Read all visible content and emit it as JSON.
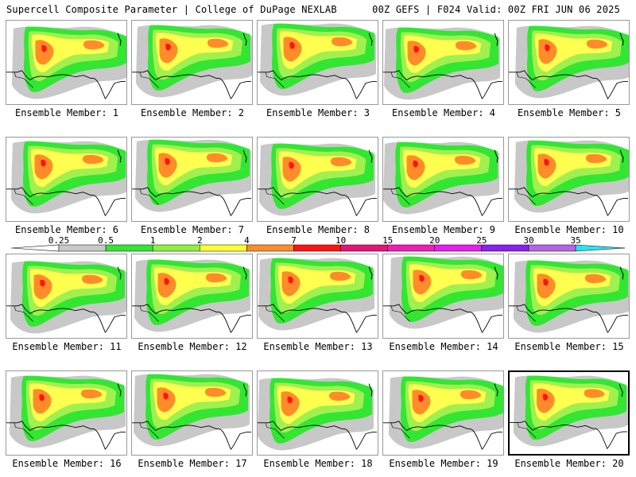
{
  "header": {
    "left": "Supercell Composite Parameter | College of DuPage NEXLAB",
    "right": "00Z GEFS | F024 Valid: 00Z FRI JUN 06 2025"
  },
  "caption_prefix": "Ensemble Member: ",
  "members": [
    1,
    2,
    3,
    4,
    5,
    6,
    7,
    8,
    9,
    10,
    11,
    12,
    13,
    14,
    15,
    16,
    17,
    18,
    19,
    20
  ],
  "selected_member": 20,
  "colorbar": {
    "labels": [
      "0.25",
      "0.5",
      "1",
      "2",
      "4",
      "7",
      "10",
      "15",
      "20",
      "25",
      "30",
      "35"
    ],
    "colors": [
      "#c8c8c8",
      "#32e632",
      "#8cf03c",
      "#ffff32",
      "#ff8c28",
      "#ff1414",
      "#e61478",
      "#f01eb4",
      "#e61ef0",
      "#8c1ef0",
      "#b464e6",
      "#28e6f0"
    ]
  },
  "map_colors": {
    "gray": "#c8c8c8",
    "green": "#32e632",
    "lightgreen": "#a0f050",
    "yellow": "#ffff50",
    "orange": "#ff8c28",
    "red": "#ff1414",
    "magenta": "#e61478",
    "outline": "#000000"
  }
}
